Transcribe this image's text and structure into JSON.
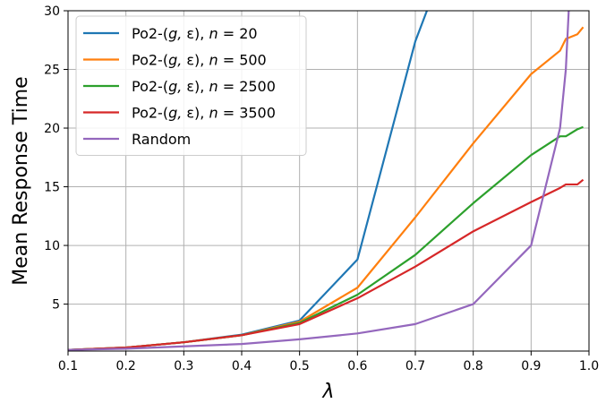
{
  "chart_data": {
    "type": "line",
    "title": "",
    "xlabel": "λ",
    "ylabel": "Mean Response Time",
    "xlim": [
      0.1,
      1.0
    ],
    "ylim": [
      1,
      30
    ],
    "xticks": [
      "0.1",
      "0.2",
      "0.3",
      "0.4",
      "0.5",
      "0.6",
      "0.7",
      "0.8",
      "0.9",
      "1.0"
    ],
    "yticks": [
      "5",
      "10",
      "15",
      "20",
      "25",
      "30"
    ],
    "grid": true,
    "legend_position": "top-left",
    "series": [
      {
        "name": "Po2-(g, ε), n = 20",
        "legend": {
          "prefix": "Po2-(",
          "g": "g",
          "eps": "ε",
          "mid": "), ",
          "n": "n",
          "eq": " = ",
          "value": "20"
        },
        "color": "#1f77b4",
        "points": [
          [
            0.1,
            1.1
          ],
          [
            0.2,
            1.3
          ],
          [
            0.3,
            1.75
          ],
          [
            0.4,
            2.4
          ],
          [
            0.5,
            3.6
          ],
          [
            0.6,
            8.8
          ],
          [
            0.7,
            27.4
          ],
          [
            0.72,
            30.0
          ]
        ]
      },
      {
        "name": "Po2-(g, ε), n = 500",
        "legend": {
          "prefix": "Po2-(",
          "g": "g",
          "eps": "ε",
          "mid": "), ",
          "n": "n",
          "eq": " = ",
          "value": "500"
        },
        "color": "#ff7f0e",
        "points": [
          [
            0.1,
            1.1
          ],
          [
            0.2,
            1.3
          ],
          [
            0.3,
            1.75
          ],
          [
            0.4,
            2.35
          ],
          [
            0.5,
            3.5
          ],
          [
            0.6,
            6.4
          ],
          [
            0.7,
            12.4
          ],
          [
            0.8,
            18.7
          ],
          [
            0.9,
            24.6
          ],
          [
            0.95,
            26.6
          ],
          [
            0.96,
            27.6
          ],
          [
            0.98,
            28.0
          ],
          [
            0.99,
            28.6
          ]
        ]
      },
      {
        "name": "Po2-(g, ε), n = 2500",
        "legend": {
          "prefix": "Po2-(",
          "g": "g",
          "eps": "ε",
          "mid": "), ",
          "n": "n",
          "eq": " = ",
          "value": "2500"
        },
        "color": "#2ca02c",
        "points": [
          [
            0.1,
            1.1
          ],
          [
            0.2,
            1.3
          ],
          [
            0.3,
            1.75
          ],
          [
            0.4,
            2.35
          ],
          [
            0.5,
            3.4
          ],
          [
            0.6,
            5.8
          ],
          [
            0.7,
            9.2
          ],
          [
            0.8,
            13.6
          ],
          [
            0.9,
            17.7
          ],
          [
            0.95,
            19.3
          ],
          [
            0.96,
            19.3
          ],
          [
            0.98,
            19.9
          ],
          [
            0.99,
            20.1
          ]
        ]
      },
      {
        "name": "Po2-(g, ε), n = 3500",
        "legend": {
          "prefix": "Po2-(",
          "g": "g",
          "eps": "ε",
          "mid": "), ",
          "n": "n",
          "eq": " = ",
          "value": "3500"
        },
        "color": "#d62728",
        "points": [
          [
            0.1,
            1.1
          ],
          [
            0.2,
            1.3
          ],
          [
            0.3,
            1.75
          ],
          [
            0.4,
            2.35
          ],
          [
            0.5,
            3.3
          ],
          [
            0.6,
            5.5
          ],
          [
            0.7,
            8.2
          ],
          [
            0.8,
            11.2
          ],
          [
            0.9,
            13.7
          ],
          [
            0.95,
            14.9
          ],
          [
            0.96,
            15.2
          ],
          [
            0.98,
            15.2
          ],
          [
            0.99,
            15.6
          ]
        ]
      },
      {
        "name": "Random",
        "legend": {
          "prefix": "Random",
          "g": "",
          "eps": "",
          "mid": "",
          "n": "",
          "eq": "",
          "value": ""
        },
        "color": "#9467bd",
        "points": [
          [
            0.1,
            1.1
          ],
          [
            0.2,
            1.2
          ],
          [
            0.3,
            1.4
          ],
          [
            0.4,
            1.6
          ],
          [
            0.5,
            2.0
          ],
          [
            0.6,
            2.5
          ],
          [
            0.7,
            3.3
          ],
          [
            0.8,
            5.0
          ],
          [
            0.9,
            10.0
          ],
          [
            0.95,
            20.0
          ],
          [
            0.96,
            25.0
          ],
          [
            0.965,
            30.0
          ]
        ]
      }
    ]
  }
}
